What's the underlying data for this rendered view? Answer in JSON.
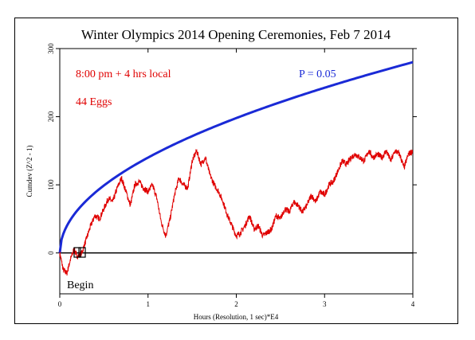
{
  "chart_data": {
    "type": "line",
    "title": "Winter Olympics 2014 Opening Ceremonies, Feb 7 2014",
    "xlabel": "Hours (Resolution, 1 sec)*E4",
    "ylabel": "Cumdev (Z^2 - 1)",
    "xlim": [
      0,
      4
    ],
    "ylim": [
      -60,
      300
    ],
    "xticks": [
      0,
      1,
      2,
      3,
      4
    ],
    "yticks": [
      0,
      100,
      200,
      300
    ],
    "grid": false,
    "annotations": {
      "time": "8:00 pm + 4 hrs local",
      "eggs": "44 Eggs",
      "probability": "P = 0.05",
      "begin": "Begin"
    },
    "colors": {
      "cumdev": "#e00000",
      "probability_envelope": "#1a2ad6",
      "zero_line": "#000000",
      "annotation_text": "#e00000",
      "probability_text": "#1a2ad6"
    },
    "series": [
      {
        "role": "probability envelope",
        "formula": "y = 140*sqrt(x)",
        "x": [
          0,
          0.05,
          0.1,
          0.2,
          0.3,
          0.5,
          0.7,
          1,
          1.5,
          2,
          2.5,
          3,
          3.5,
          4
        ],
        "y": [
          0,
          31,
          44,
          63,
          77,
          99,
          117,
          140,
          171,
          198,
          221,
          242,
          262,
          280
        ]
      },
      {
        "role": "cumulative deviation",
        "x": [
          0,
          0.04,
          0.08,
          0.12,
          0.16,
          0.2,
          0.25,
          0.3,
          0.35,
          0.4,
          0.45,
          0.5,
          0.55,
          0.6,
          0.65,
          0.7,
          0.75,
          0.8,
          0.85,
          0.9,
          0.95,
          1.0,
          1.05,
          1.1,
          1.15,
          1.2,
          1.25,
          1.3,
          1.35,
          1.4,
          1.45,
          1.5,
          1.55,
          1.6,
          1.65,
          1.7,
          1.75,
          1.8,
          1.85,
          1.9,
          1.95,
          2.0,
          2.05,
          2.1,
          2.15,
          2.2,
          2.25,
          2.3,
          2.35,
          2.4,
          2.45,
          2.5,
          2.55,
          2.6,
          2.65,
          2.7,
          2.75,
          2.8,
          2.85,
          2.9,
          2.95,
          3.0,
          3.05,
          3.1,
          3.15,
          3.2,
          3.25,
          3.3,
          3.35,
          3.4,
          3.45,
          3.5,
          3.55,
          3.6,
          3.65,
          3.7,
          3.75,
          3.8,
          3.85,
          3.9,
          3.95,
          4.0
        ],
        "y": [
          0,
          -25,
          -30,
          -10,
          5,
          -5,
          0,
          20,
          40,
          55,
          50,
          65,
          80,
          75,
          95,
          110,
          90,
          70,
          100,
          105,
          95,
          90,
          100,
          80,
          45,
          25,
          50,
          85,
          110,
          100,
          95,
          135,
          150,
          130,
          140,
          115,
          100,
          90,
          75,
          55,
          40,
          25,
          30,
          40,
          55,
          35,
          40,
          25,
          30,
          35,
          55,
          50,
          65,
          60,
          75,
          70,
          60,
          70,
          85,
          75,
          90,
          85,
          100,
          105,
          120,
          135,
          130,
          140,
          145,
          140,
          135,
          150,
          140,
          145,
          140,
          150,
          135,
          150,
          145,
          125,
          145,
          150
        ]
      }
    ]
  }
}
